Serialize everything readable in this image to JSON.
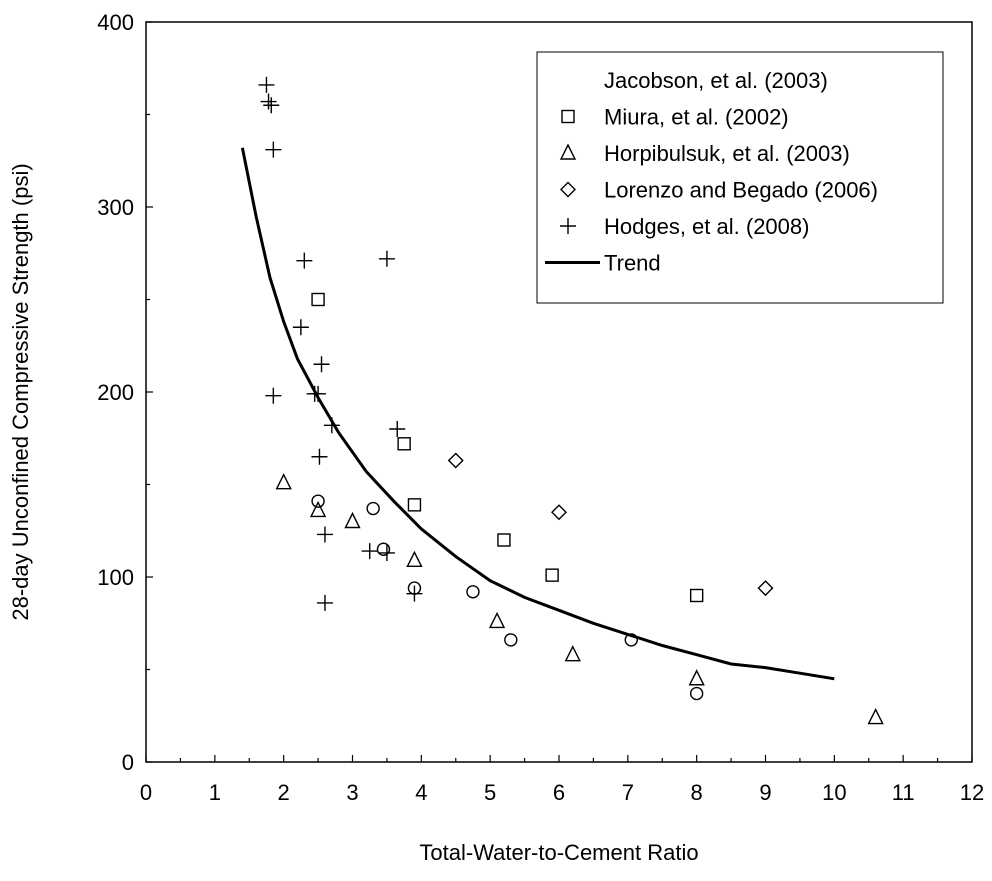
{
  "chart_data": {
    "type": "scatter",
    "title": "",
    "xlabel": "Total-Water-to-Cement Ratio",
    "ylabel": "28-day Unconfined Compressive Strength (psi)",
    "xlim": [
      0,
      12
    ],
    "ylim": [
      0,
      400
    ],
    "x_ticks": [
      0,
      1,
      2,
      3,
      4,
      5,
      6,
      7,
      8,
      9,
      10,
      11,
      12
    ],
    "y_ticks": [
      0,
      100,
      200,
      300,
      400
    ],
    "grid": false,
    "legend_position": "top-right",
    "series": [
      {
        "name": "Jacobson, et al. (2003)",
        "marker": "circle",
        "points": [
          [
            2.5,
            141
          ],
          [
            3.3,
            137
          ],
          [
            3.45,
            115
          ],
          [
            3.9,
            94
          ],
          [
            4.75,
            92
          ],
          [
            5.3,
            66
          ],
          [
            7.05,
            66
          ],
          [
            8.0,
            37
          ]
        ]
      },
      {
        "name": "Miura, et al. (2002)",
        "marker": "square",
        "points": [
          [
            2.5,
            250
          ],
          [
            3.75,
            172
          ],
          [
            3.9,
            139
          ],
          [
            5.2,
            120
          ],
          [
            5.9,
            101
          ],
          [
            8.0,
            90
          ]
        ]
      },
      {
        "name": "Horpibulsuk, et al. (2003)",
        "marker": "triangle",
        "points": [
          [
            2.0,
            151
          ],
          [
            2.5,
            136
          ],
          [
            3.0,
            130
          ],
          [
            3.9,
            109
          ],
          [
            5.1,
            76
          ],
          [
            6.2,
            58
          ],
          [
            8.0,
            45
          ],
          [
            10.6,
            24
          ]
        ]
      },
      {
        "name": "Lorenzo and Begado (2006)",
        "marker": "diamond",
        "points": [
          [
            4.5,
            163
          ],
          [
            6.0,
            135
          ],
          [
            9.0,
            94
          ]
        ]
      },
      {
        "name": "Hodges, et al. (2008)",
        "marker": "plus",
        "points": [
          [
            1.75,
            366
          ],
          [
            1.78,
            357
          ],
          [
            1.82,
            355
          ],
          [
            1.85,
            331
          ],
          [
            2.3,
            271
          ],
          [
            3.5,
            272
          ],
          [
            2.25,
            235
          ],
          [
            2.55,
            215
          ],
          [
            1.85,
            198
          ],
          [
            2.45,
            199
          ],
          [
            2.5,
            199
          ],
          [
            2.7,
            182
          ],
          [
            3.65,
            180
          ],
          [
            2.52,
            165
          ],
          [
            2.6,
            123
          ],
          [
            3.25,
            114
          ],
          [
            3.5,
            113
          ],
          [
            3.9,
            91
          ],
          [
            2.6,
            86
          ]
        ]
      },
      {
        "name": "Trend",
        "line": true,
        "points": [
          [
            1.4,
            332
          ],
          [
            1.6,
            295
          ],
          [
            1.8,
            262
          ],
          [
            2.0,
            238
          ],
          [
            2.2,
            218
          ],
          [
            2.5,
            197
          ],
          [
            2.8,
            178
          ],
          [
            3.2,
            157
          ],
          [
            3.6,
            141
          ],
          [
            4.0,
            126
          ],
          [
            4.5,
            111
          ],
          [
            5.0,
            98
          ],
          [
            5.5,
            89
          ],
          [
            6.0,
            82
          ],
          [
            6.5,
            75
          ],
          [
            7.0,
            69
          ],
          [
            7.5,
            63
          ],
          [
            8.0,
            58
          ],
          [
            8.5,
            53
          ],
          [
            9.0,
            51
          ],
          [
            9.5,
            48
          ],
          [
            10.0,
            45
          ]
        ]
      }
    ]
  }
}
